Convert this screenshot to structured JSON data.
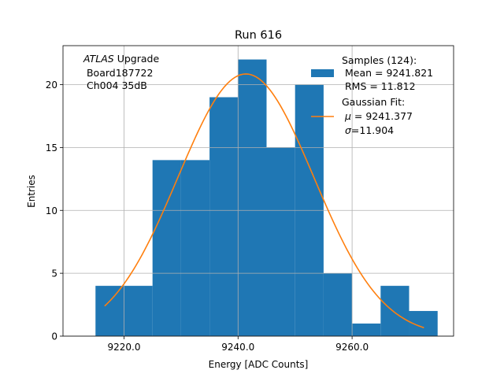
{
  "chart_data": {
    "type": "bar",
    "title": "Run 616",
    "xlabel": "Energy [ADC Counts]",
    "ylabel": "Entries",
    "xlim": [
      9209.3,
      9277.8
    ],
    "ylim": [
      0,
      23.1
    ],
    "grid": true,
    "xticks": [
      {
        "value": 9220,
        "label": "9220.0"
      },
      {
        "value": 9240,
        "label": "9240.0"
      },
      {
        "value": 9260,
        "label": "9260.0"
      }
    ],
    "yticks": [
      {
        "value": 0,
        "label": "0"
      },
      {
        "value": 5,
        "label": "5"
      },
      {
        "value": 10,
        "label": "10"
      },
      {
        "value": 15,
        "label": "15"
      },
      {
        "value": 20,
        "label": "20"
      }
    ],
    "bin_edges": [
      9215.0,
      9220.0,
      9225.0,
      9230.0,
      9235.0,
      9240.0,
      9245.0,
      9250.0,
      9255.0,
      9260.0,
      9265.0,
      9270.0,
      9275.0
    ],
    "counts": [
      4,
      4,
      14,
      14,
      19,
      22,
      15,
      20,
      5,
      1,
      4,
      2
    ],
    "bar_color": "#1f77b4",
    "fit": {
      "mu": 9241.377,
      "sigma": 11.904,
      "amplitude": 20.85,
      "x_range": [
        9216.6,
        9272.6
      ],
      "color": "#ff7f0e"
    },
    "annotation": {
      "line1_italic": "ATLAS",
      "line1_rest": " Upgrade",
      "line2": " Board187722",
      "line3": " Ch004 35dB"
    },
    "legend": {
      "position": "top-right",
      "samples_title": "Samples (124):",
      "samples_mean": " Mean = 9241.821",
      "samples_rms": " RMS = 11.812",
      "fit_title": "Gaussian Fit:",
      "fit_mu_symbol": "μ",
      "fit_mu_value": " = 9241.377",
      "fit_sigma_symbol": "σ",
      "fit_sigma_value": "=11.904"
    }
  }
}
